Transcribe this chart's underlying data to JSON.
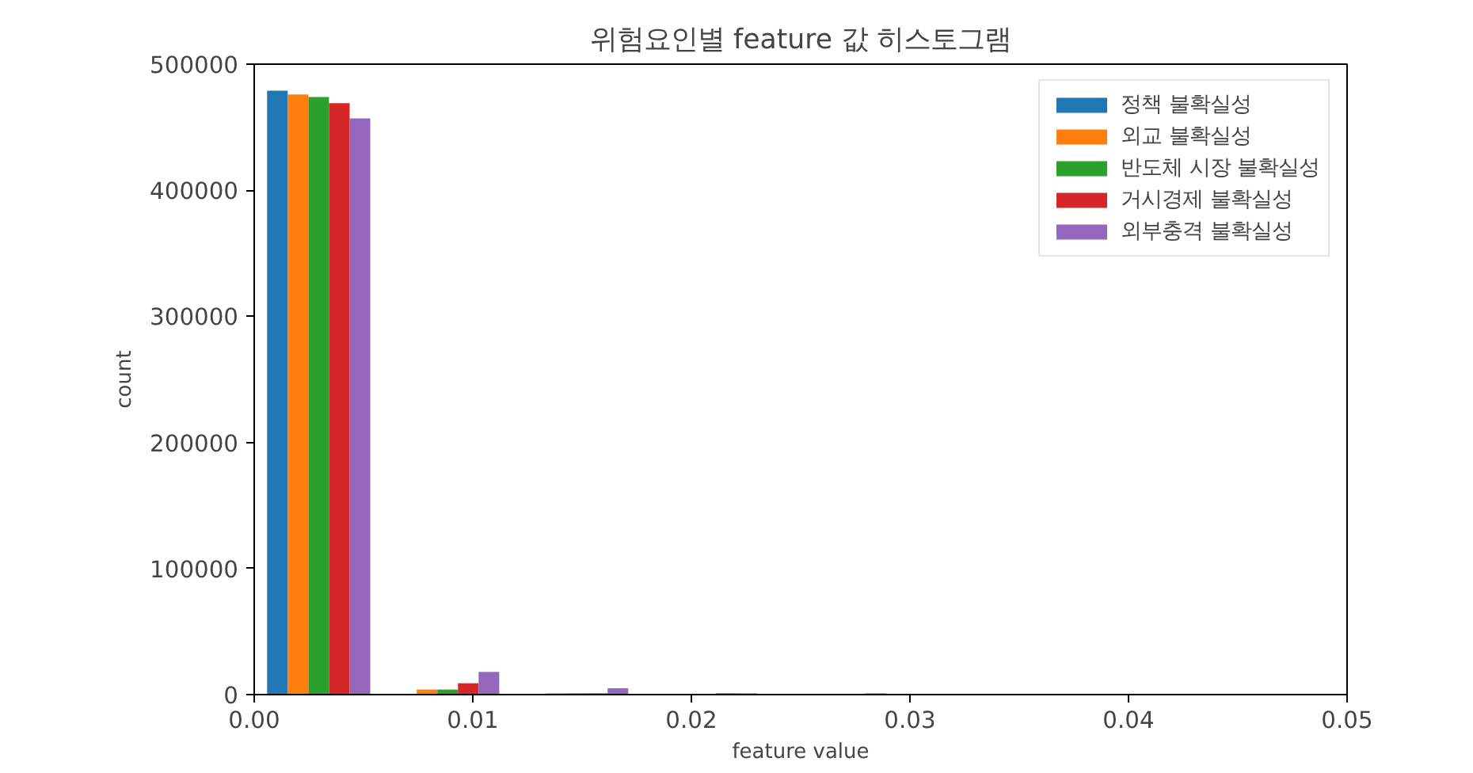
{
  "chart_data": {
    "type": "histogram",
    "title": "위험요인별 feature 값 히스토그램",
    "xlabel": "feature value",
    "ylabel": "count",
    "bins": [
      0,
      0.0059,
      0.0118,
      0.0177,
      0.0236,
      0.0295,
      0.0354,
      0.0413,
      0.0472
    ],
    "series": [
      {
        "name": "정책 불확실성",
        "color": "#1f77b4",
        "values": [
          479000,
          0,
          0,
          0,
          0,
          0,
          0,
          0
        ]
      },
      {
        "name": "외교 불확실성",
        "color": "#ff7f0e",
        "values": [
          476000,
          4000,
          1000,
          0,
          0,
          0,
          0,
          0
        ]
      },
      {
        "name": "반도체 시장 불확실성",
        "color": "#2ca02c",
        "values": [
          474000,
          4000,
          1000,
          0,
          0,
          0,
          0,
          0
        ]
      },
      {
        "name": "거시경제 불확실성",
        "color": "#d62728",
        "values": [
          469000,
          9000,
          1000,
          1000,
          0,
          0,
          0,
          0
        ]
      },
      {
        "name": "외부충격 불확실성",
        "color": "#9467bd",
        "values": [
          457000,
          18000,
          5000,
          1000,
          1000,
          0,
          0,
          0
        ]
      }
    ],
    "xlim": [
      0,
      0.05
    ],
    "xticks": [
      {
        "value": 0,
        "label": "0.00"
      },
      0.01,
      0.02,
      0.03,
      0.04,
      0.05
    ],
    "ylim": [
      0,
      500000
    ],
    "yticks": [
      0,
      100000,
      200000,
      300000,
      400000,
      500000
    ],
    "grid": false,
    "legend": "top right"
  }
}
